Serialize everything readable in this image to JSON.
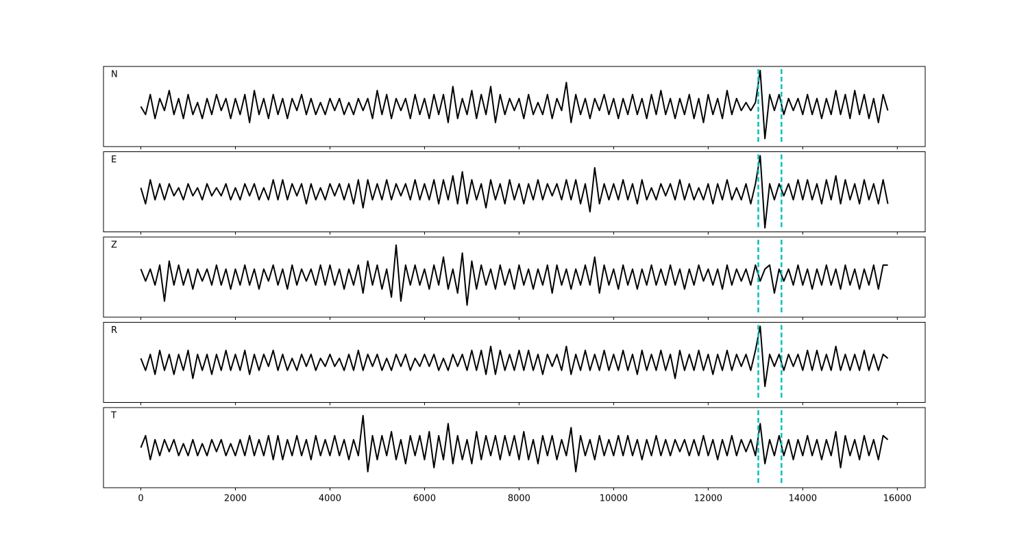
{
  "chart_data": {
    "type": "line",
    "layout": "stacked",
    "x": [
      0,
      100,
      200,
      300,
      400,
      500,
      600,
      700,
      800,
      900,
      1000,
      1100,
      1200,
      1300,
      1400,
      1500,
      1600,
      1700,
      1800,
      1900,
      2000,
      2100,
      2200,
      2300,
      2400,
      2500,
      2600,
      2700,
      2800,
      2900,
      3000,
      3100,
      3200,
      3300,
      3400,
      3500,
      3600,
      3700,
      3800,
      3900,
      4000,
      4100,
      4200,
      4300,
      4400,
      4500,
      4600,
      4700,
      4800,
      4900,
      5000,
      5100,
      5200,
      5300,
      5400,
      5500,
      5600,
      5700,
      5800,
      5900,
      6000,
      6100,
      6200,
      6300,
      6400,
      6500,
      6600,
      6700,
      6800,
      6900,
      7000,
      7100,
      7200,
      7300,
      7400,
      7500,
      7600,
      7700,
      7800,
      7900,
      8000,
      8100,
      8200,
      8300,
      8400,
      8500,
      8600,
      8700,
      8800,
      8900,
      9000,
      9100,
      9200,
      9300,
      9400,
      9500,
      9600,
      9700,
      9800,
      9900,
      10000,
      10100,
      10200,
      10300,
      10400,
      10500,
      10600,
      10700,
      10800,
      10900,
      11000,
      11100,
      11200,
      11300,
      11400,
      11500,
      11600,
      11700,
      11800,
      11900,
      12000,
      12100,
      12200,
      12300,
      12400,
      12500,
      12600,
      12700,
      12800,
      12900,
      13000,
      13100,
      13200,
      13300,
      13400,
      13500,
      13600,
      13700,
      13800,
      13900,
      14000,
      14100,
      14200,
      14300,
      14400,
      14500,
      14600,
      14700,
      14800,
      14900,
      15000,
      15100,
      15200,
      15300,
      15400,
      15500,
      15600,
      15700,
      15800
    ],
    "xlim": [
      -790,
      16590
    ],
    "ylim": [
      -1,
      1
    ],
    "xticks": [
      0,
      2000,
      4000,
      6000,
      8000,
      10000,
      12000,
      14000,
      16000
    ],
    "markers": {
      "x": [
        13060,
        13550
      ],
      "color": "#00bfbf",
      "style": "dashed"
    },
    "series": [
      {
        "name": "N",
        "color": "#000000",
        "values": [
          0,
          -0.2,
          0.3,
          -0.3,
          0.2,
          -0.1,
          0.4,
          -0.2,
          0.2,
          -0.3,
          0.3,
          -0.2,
          0.1,
          -0.3,
          0.2,
          -0.2,
          0.3,
          -0.1,
          0.2,
          -0.3,
          0.2,
          -0.2,
          0.3,
          -0.4,
          0.4,
          -0.2,
          0.2,
          -0.3,
          0.3,
          -0.2,
          0.2,
          -0.3,
          0.2,
          -0.1,
          0.3,
          -0.2,
          0.2,
          -0.2,
          0.1,
          -0.2,
          0.2,
          -0.1,
          0.2,
          -0.2,
          0.1,
          -0.2,
          0.2,
          -0.1,
          0.2,
          -0.3,
          0.4,
          -0.2,
          0.3,
          -0.3,
          0.2,
          -0.1,
          0.2,
          -0.3,
          0.3,
          -0.2,
          0.2,
          -0.3,
          0.3,
          -0.2,
          0.3,
          -0.4,
          0.5,
          -0.3,
          0.2,
          -0.2,
          0.4,
          -0.3,
          0.3,
          -0.2,
          0.5,
          -0.4,
          0.3,
          -0.2,
          0.2,
          -0.1,
          0.2,
          -0.3,
          0.3,
          -0.2,
          0.1,
          -0.2,
          0.3,
          -0.3,
          0.2,
          -0.1,
          0.6,
          -0.4,
          0.3,
          -0.2,
          0.2,
          -0.3,
          0.2,
          -0.1,
          0.3,
          -0.2,
          0.2,
          -0.3,
          0.2,
          -0.2,
          0.3,
          -0.2,
          0.2,
          -0.3,
          0.3,
          -0.2,
          0.4,
          -0.2,
          0.2,
          -0.3,
          0.2,
          -0.2,
          0.3,
          -0.3,
          0.2,
          -0.4,
          0.3,
          -0.2,
          0.2,
          -0.3,
          0.4,
          -0.2,
          0.2,
          -0.1,
          0.1,
          -0.1,
          0.1,
          0.9,
          -0.8,
          0.3,
          -0.1,
          0.3,
          -0.2,
          0.2,
          -0.1,
          0.2,
          -0.2,
          0.3,
          -0.2,
          0.2,
          -0.3,
          0.2,
          -0.2,
          0.4,
          -0.2,
          0.3,
          -0.3,
          0.4,
          -0.2,
          0.3,
          -0.3,
          0.2,
          -0.4,
          0.3,
          -0.1
        ]
      },
      {
        "name": "E",
        "color": "#000000",
        "values": [
          0.1,
          -0.3,
          0.3,
          -0.2,
          0.2,
          -0.2,
          0.2,
          -0.1,
          0.1,
          -0.2,
          0.2,
          -0.1,
          0.1,
          -0.2,
          0.2,
          -0.1,
          0.1,
          -0.1,
          0.2,
          -0.2,
          0.1,
          -0.2,
          0.2,
          -0.1,
          0.2,
          -0.2,
          0.1,
          -0.2,
          0.3,
          -0.2,
          0.3,
          -0.2,
          0.2,
          -0.1,
          0.2,
          -0.3,
          0.2,
          -0.2,
          0.1,
          -0.2,
          0.2,
          -0.1,
          0.2,
          -0.2,
          0.2,
          -0.3,
          0.3,
          -0.4,
          0.3,
          -0.2,
          0.2,
          -0.2,
          0.3,
          -0.2,
          0.2,
          -0.1,
          0.2,
          -0.2,
          0.3,
          -0.2,
          0.2,
          -0.2,
          0.3,
          -0.3,
          0.3,
          -0.2,
          0.4,
          -0.3,
          0.5,
          -0.3,
          0.3,
          -0.2,
          0.2,
          -0.4,
          0.3,
          -0.2,
          0.2,
          -0.3,
          0.3,
          -0.2,
          0.2,
          -0.3,
          0.2,
          -0.2,
          0.3,
          -0.2,
          0.2,
          -0.1,
          0.2,
          -0.2,
          0.3,
          -0.2,
          0.3,
          -0.3,
          0.2,
          -0.5,
          0.6,
          -0.3,
          0.2,
          -0.2,
          0.2,
          -0.2,
          0.3,
          -0.2,
          0.2,
          -0.3,
          0.3,
          -0.2,
          0.1,
          -0.2,
          0.2,
          -0.1,
          0.2,
          -0.2,
          0.3,
          -0.2,
          0.2,
          -0.2,
          0.1,
          -0.2,
          0.2,
          -0.3,
          0.2,
          -0.2,
          0.3,
          -0.2,
          0.1,
          -0.2,
          0.2,
          -0.3,
          0.2,
          0.9,
          -0.9,
          0.2,
          -0.2,
          0.2,
          -0.1,
          0.2,
          -0.2,
          0.3,
          -0.2,
          0.3,
          -0.2,
          0.2,
          -0.3,
          0.3,
          -0.2,
          0.4,
          -0.3,
          0.3,
          -0.2,
          0.2,
          -0.3,
          0.3,
          -0.2,
          0.2,
          -0.3,
          0.3,
          -0.3
        ]
      },
      {
        "name": "Z",
        "color": "#000000",
        "values": [
          0.2,
          -0.1,
          0.2,
          -0.2,
          0.3,
          -0.6,
          0.4,
          -0.2,
          0.3,
          -0.2,
          0.2,
          -0.3,
          0.2,
          -0.1,
          0.2,
          -0.2,
          0.3,
          -0.2,
          0.2,
          -0.3,
          0.2,
          -0.2,
          0.3,
          -0.2,
          0.2,
          -0.3,
          0.2,
          -0.1,
          0.3,
          -0.2,
          0.2,
          -0.3,
          0.3,
          -0.2,
          0.2,
          -0.1,
          0.2,
          -0.2,
          0.3,
          -0.2,
          0.3,
          -0.2,
          0.2,
          -0.3,
          0.2,
          -0.2,
          0.3,
          -0.4,
          0.4,
          -0.2,
          0.3,
          -0.3,
          0.2,
          -0.5,
          0.8,
          -0.6,
          0.3,
          -0.2,
          0.3,
          -0.2,
          0.2,
          -0.3,
          0.3,
          -0.2,
          0.5,
          -0.3,
          0.2,
          -0.4,
          0.6,
          -0.7,
          0.4,
          -0.3,
          0.3,
          -0.2,
          0.2,
          -0.3,
          0.3,
          -0.2,
          0.2,
          -0.3,
          0.3,
          -0.2,
          0.2,
          -0.3,
          0.2,
          -0.2,
          0.3,
          -0.4,
          0.3,
          -0.2,
          0.2,
          -0.3,
          0.2,
          -0.2,
          0.3,
          -0.2,
          0.5,
          -0.4,
          0.3,
          -0.2,
          0.2,
          -0.3,
          0.3,
          -0.2,
          0.2,
          -0.3,
          0.2,
          -0.2,
          0.3,
          -0.2,
          0.2,
          -0.2,
          0.3,
          -0.2,
          0.2,
          -0.3,
          0.2,
          -0.2,
          0.3,
          -0.1,
          0.2,
          -0.2,
          0.2,
          -0.3,
          0.3,
          -0.2,
          0.2,
          -0.1,
          0.2,
          -0.2,
          0.3,
          -0.1,
          0.2,
          0.3,
          -0.4,
          0.2,
          -0.1,
          0.2,
          -0.2,
          0.3,
          -0.2,
          0.2,
          -0.3,
          0.2,
          -0.2,
          0.3,
          -0.2,
          0.2,
          -0.3,
          0.3,
          -0.2,
          0.2,
          -0.3,
          0.2,
          -0.2,
          0.3,
          -0.3,
          0.3,
          0.3
        ]
      },
      {
        "name": "R",
        "color": "#000000",
        "values": [
          0.1,
          -0.2,
          0.2,
          -0.3,
          0.3,
          -0.2,
          0.2,
          -0.3,
          0.2,
          -0.2,
          0.3,
          -0.4,
          0.2,
          -0.2,
          0.2,
          -0.3,
          0.2,
          -0.2,
          0.3,
          -0.2,
          0.2,
          -0.2,
          0.3,
          -0.3,
          0.2,
          -0.2,
          0.2,
          -0.1,
          0.3,
          -0.2,
          0.2,
          -0.2,
          0.1,
          -0.2,
          0.2,
          -0.1,
          0.2,
          -0.2,
          0.1,
          -0.1,
          0.2,
          -0.1,
          0.1,
          -0.2,
          0.2,
          -0.2,
          0.3,
          -0.2,
          0.2,
          -0.1,
          0.2,
          -0.2,
          0.1,
          -0.2,
          0.2,
          -0.1,
          0.2,
          -0.2,
          0.1,
          -0.1,
          0.2,
          -0.1,
          0.2,
          -0.2,
          0.1,
          -0.2,
          0.2,
          -0.1,
          0.2,
          -0.2,
          0.3,
          -0.2,
          0.3,
          -0.3,
          0.4,
          -0.3,
          0.3,
          -0.2,
          0.2,
          -0.2,
          0.3,
          -0.2,
          0.3,
          -0.2,
          0.2,
          -0.3,
          0.2,
          -0.1,
          0.2,
          -0.2,
          0.4,
          -0.3,
          0.2,
          -0.2,
          0.3,
          -0.2,
          0.2,
          -0.2,
          0.3,
          -0.2,
          0.2,
          -0.2,
          0.3,
          -0.2,
          0.2,
          -0.3,
          0.3,
          -0.2,
          0.2,
          -0.2,
          0.3,
          -0.2,
          0.2,
          -0.4,
          0.3,
          -0.2,
          0.2,
          -0.2,
          0.3,
          -0.2,
          0.2,
          -0.3,
          0.2,
          -0.2,
          0.3,
          -0.2,
          0.2,
          -0.1,
          0.2,
          -0.2,
          0.3,
          0.9,
          -0.6,
          0.2,
          -0.1,
          0.2,
          -0.2,
          0.2,
          -0.1,
          0.2,
          -0.2,
          0.3,
          -0.2,
          0.3,
          -0.2,
          0.2,
          -0.2,
          0.4,
          -0.2,
          0.2,
          -0.2,
          0.2,
          -0.2,
          0.3,
          -0.2,
          0.2,
          -0.2,
          0.2,
          0.1
        ]
      },
      {
        "name": "T",
        "color": "#000000",
        "values": [
          0,
          0.3,
          -0.3,
          0.2,
          -0.2,
          0.2,
          -0.1,
          0.2,
          -0.2,
          0.1,
          -0.2,
          0.2,
          -0.2,
          0.1,
          -0.2,
          0.2,
          -0.1,
          0.2,
          -0.2,
          0.1,
          -0.2,
          0.2,
          -0.2,
          0.3,
          -0.2,
          0.2,
          -0.2,
          0.3,
          -0.3,
          0.3,
          -0.3,
          0.2,
          -0.2,
          0.3,
          -0.2,
          0.2,
          -0.3,
          0.3,
          -0.2,
          0.2,
          -0.2,
          0.3,
          -0.2,
          0.2,
          -0.3,
          0.2,
          -0.2,
          0.8,
          -0.6,
          0.3,
          -0.3,
          0.3,
          -0.2,
          0.4,
          -0.3,
          0.2,
          -0.4,
          0.3,
          -0.2,
          0.3,
          -0.3,
          0.4,
          -0.5,
          0.3,
          -0.3,
          0.6,
          -0.4,
          0.3,
          -0.3,
          0.2,
          -0.4,
          0.4,
          -0.3,
          0.3,
          -0.2,
          0.3,
          -0.3,
          0.3,
          -0.2,
          0.3,
          -0.3,
          0.4,
          -0.3,
          0.2,
          -0.4,
          0.3,
          -0.2,
          0.3,
          -0.3,
          0.2,
          -0.2,
          0.5,
          -0.6,
          0.3,
          -0.2,
          0.2,
          -0.3,
          0.3,
          -0.2,
          0.2,
          -0.2,
          0.3,
          -0.2,
          0.3,
          -0.2,
          0.2,
          -0.3,
          0.2,
          -0.2,
          0.3,
          -0.2,
          0.2,
          -0.2,
          0.2,
          -0.1,
          0.2,
          -0.2,
          0.2,
          -0.2,
          0.3,
          -0.2,
          0.2,
          -0.3,
          0.2,
          -0.2,
          0.3,
          -0.2,
          0.2,
          -0.1,
          0.2,
          -0.2,
          0.6,
          -0.4,
          0.2,
          -0.2,
          0.3,
          -0.2,
          0.2,
          -0.3,
          0.2,
          -0.2,
          0.3,
          -0.2,
          0.2,
          -0.3,
          0.2,
          -0.2,
          0.4,
          -0.5,
          0.3,
          -0.2,
          0.2,
          -0.3,
          0.3,
          -0.2,
          0.2,
          -0.3,
          0.3,
          0.2
        ]
      }
    ]
  }
}
